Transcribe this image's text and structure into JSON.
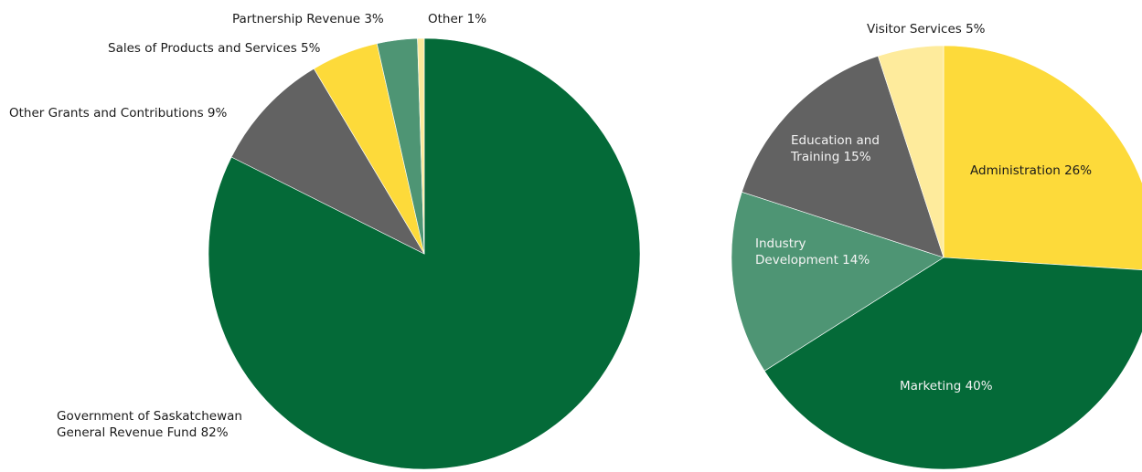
{
  "chart_data": [
    {
      "type": "pie",
      "title": "",
      "start_angle_deg": 0,
      "direction": "clockwise",
      "slices": [
        {
          "label": [
            "Government of Saskatchewan",
            "General Revenue Fund 82%"
          ],
          "value": 82,
          "color": "#046A38"
        },
        {
          "label": [
            "Other Grants and Contributions 9%"
          ],
          "value": 9,
          "color": "#626262"
        },
        {
          "label": [
            "Sales of Products and Services  5%"
          ],
          "value": 5,
          "color": "#FDDA3A"
        },
        {
          "label": [
            "Partnership Revenue 3%"
          ],
          "value": 3,
          "color": "#4E9574"
        },
        {
          "label": [
            "Other  1%"
          ],
          "value": 0.5,
          "color": "#FCE99A"
        }
      ]
    },
    {
      "type": "pie",
      "title": "",
      "start_angle_deg": 0,
      "direction": "clockwise",
      "slices": [
        {
          "label": [
            "Administration 26%"
          ],
          "value": 26,
          "color": "#FDDA3A"
        },
        {
          "label": [
            "Marketing  40%"
          ],
          "value": 40,
          "color": "#046A38"
        },
        {
          "label": [
            "Industry",
            "Development 14%"
          ],
          "value": 14,
          "color": "#4E9574"
        },
        {
          "label": [
            "Education and",
            "Training 15%"
          ],
          "value": 15,
          "color": "#626262"
        },
        {
          "label": [
            "Visitor Services 5%"
          ],
          "value": 5,
          "color": "#FEEB9C"
        }
      ]
    }
  ]
}
